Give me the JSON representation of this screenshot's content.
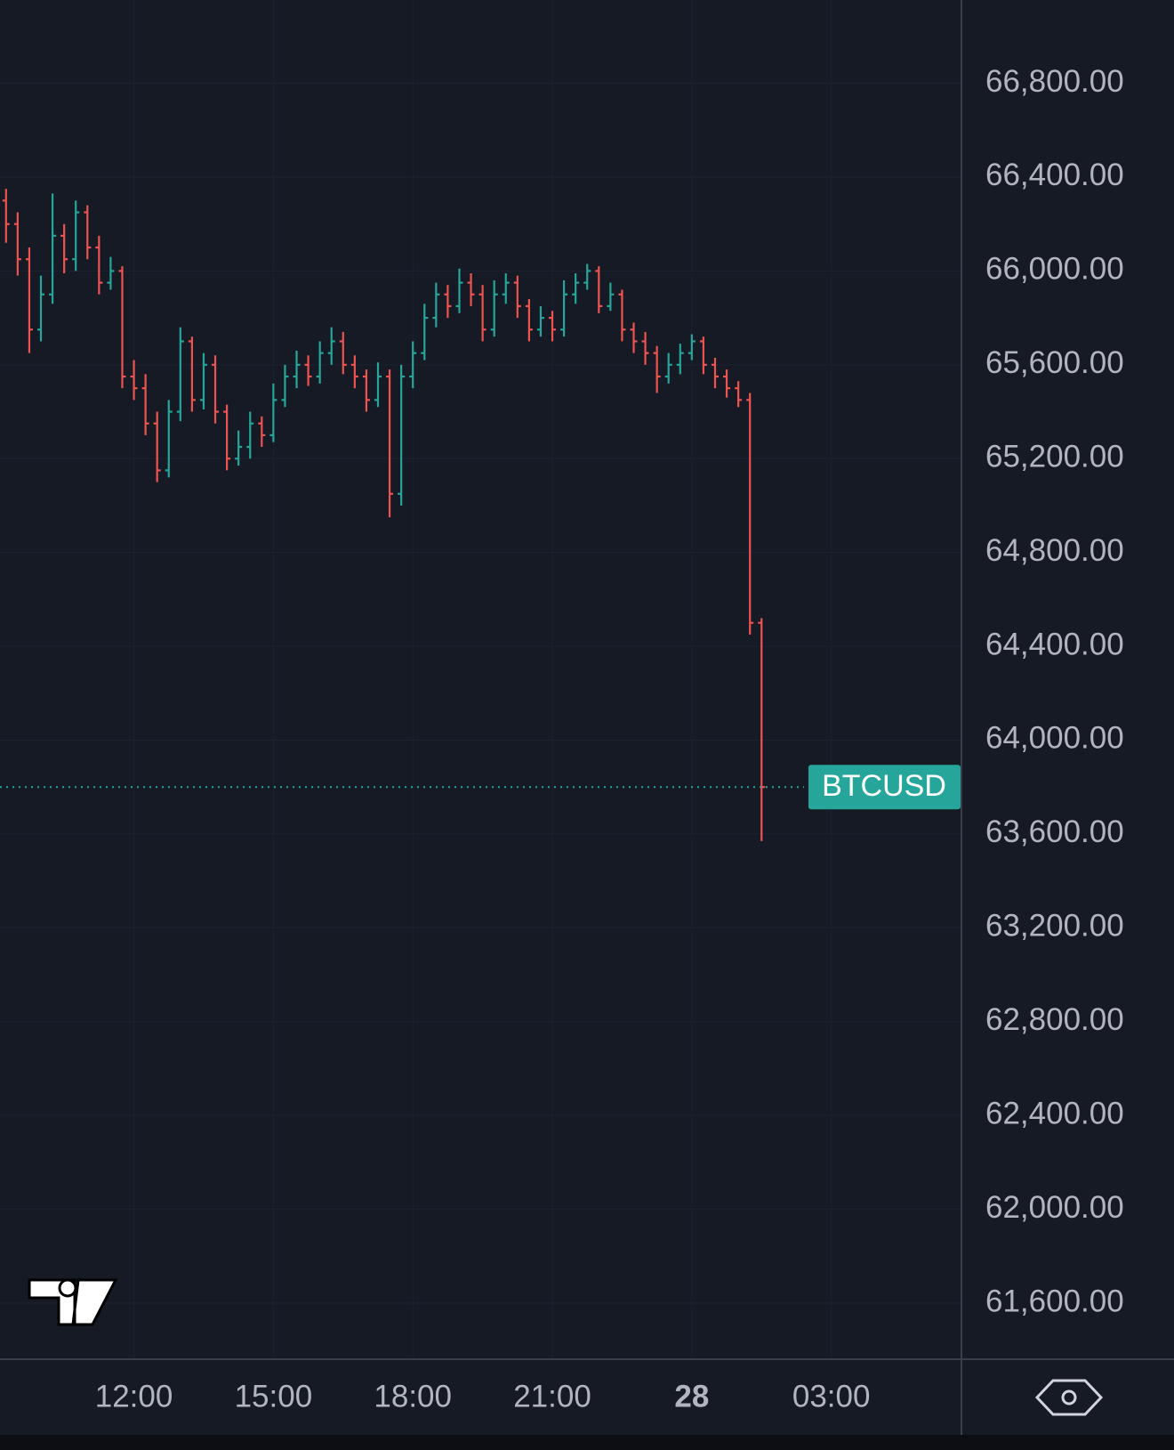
{
  "chart_data": {
    "type": "ohlc",
    "symbol": "BTCUSD",
    "up_color": "#26a69a",
    "down_color": "#ef5350",
    "grid": true,
    "x": [
      9.25,
      9.5,
      9.75,
      10,
      10.25,
      10.5,
      10.75,
      11,
      11.25,
      11.5,
      11.75,
      12,
      12.25,
      12.5,
      12.75,
      13,
      13.25,
      13.5,
      13.75,
      14,
      14.25,
      14.5,
      14.75,
      15,
      15.25,
      15.5,
      15.75,
      16,
      16.25,
      16.5,
      16.75,
      17,
      17.25,
      17.5,
      17.75,
      18,
      18.25,
      18.5,
      18.75,
      19,
      19.25,
      19.5,
      19.75,
      20,
      20.25,
      20.5,
      20.75,
      21,
      21.25,
      21.5,
      21.75,
      22,
      22.25,
      22.5,
      22.75,
      23,
      23.25,
      23.5,
      23.75,
      24,
      24.25,
      24.5,
      24.75,
      25,
      25.25,
      25.5
    ],
    "open": [
      66300,
      66200,
      66050,
      65750,
      65900,
      66150,
      66050,
      66250,
      66100,
      65950,
      66000,
      65550,
      65500,
      65350,
      65150,
      65400,
      65700,
      65450,
      65600,
      65400,
      65200,
      65250,
      65350,
      65300,
      65450,
      65550,
      65600,
      65550,
      65650,
      65700,
      65600,
      65550,
      65450,
      65550,
      65050,
      65550,
      65650,
      65800,
      65900,
      65850,
      65950,
      65900,
      65750,
      65900,
      65950,
      65850,
      65750,
      65800,
      65750,
      65900,
      65950,
      66000,
      65850,
      65900,
      65750,
      65700,
      65650,
      65550,
      65600,
      65650,
      65700,
      65600,
      65550,
      65500,
      65450,
      64500
    ],
    "high": [
      66350,
      66250,
      66100,
      65980,
      66330,
      66200,
      66300,
      66280,
      66150,
      66060,
      66020,
      65620,
      65560,
      65400,
      65450,
      65760,
      65720,
      65650,
      65640,
      65430,
      65320,
      65400,
      65380,
      65520,
      65600,
      65660,
      65640,
      65700,
      65760,
      65740,
      65640,
      65580,
      65610,
      65580,
      65600,
      65700,
      65860,
      65950,
      65940,
      66010,
      65990,
      65940,
      65960,
      65990,
      65980,
      65880,
      65850,
      65830,
      65960,
      65990,
      66030,
      66020,
      65950,
      65920,
      65780,
      65740,
      65680,
      65650,
      65690,
      65730,
      65720,
      65630,
      65580,
      65530,
      65480,
      64520
    ],
    "low": [
      66120,
      65980,
      65650,
      65700,
      65860,
      65990,
      66000,
      66050,
      65900,
      65920,
      65500,
      65450,
      65300,
      65100,
      65120,
      65360,
      65400,
      65410,
      65350,
      65150,
      65170,
      65200,
      65250,
      65270,
      65420,
      65500,
      65510,
      65520,
      65600,
      65560,
      65500,
      65400,
      65420,
      64950,
      65000,
      65500,
      65620,
      65760,
      65800,
      65820,
      65850,
      65700,
      65720,
      65860,
      65800,
      65700,
      65720,
      65700,
      65720,
      65860,
      65920,
      65820,
      65830,
      65700,
      65650,
      65600,
      65480,
      65520,
      65560,
      65620,
      65560,
      65500,
      65460,
      65420,
      64450,
      63570
    ],
    "close": [
      66200,
      66050,
      65750,
      65900,
      66150,
      66050,
      66250,
      66100,
      65950,
      66000,
      65550,
      65500,
      65350,
      65150,
      65400,
      65700,
      65450,
      65600,
      65400,
      65200,
      65250,
      65350,
      65300,
      65450,
      65550,
      65600,
      65550,
      65650,
      65700,
      65600,
      65550,
      65450,
      65550,
      65050,
      65550,
      65650,
      65800,
      65900,
      65850,
      65950,
      65900,
      65750,
      65900,
      65950,
      65850,
      65750,
      65800,
      65750,
      65900,
      65950,
      66000,
      65850,
      65900,
      65750,
      65700,
      65650,
      65550,
      65600,
      65650,
      65700,
      65600,
      65550,
      65500,
      65450,
      64500,
      63800
    ],
    "last_price": 63800,
    "xlim": [
      9.12,
      29.78
    ],
    "ylim": [
      61361,
      67155
    ],
    "xticks": [
      {
        "value": 12,
        "label": "12:00"
      },
      {
        "value": 15,
        "label": "15:00"
      },
      {
        "value": 18,
        "label": "18:00"
      },
      {
        "value": 21,
        "label": "21:00"
      },
      {
        "value": 24,
        "label": "28"
      },
      {
        "value": 27,
        "label": "03:00"
      }
    ],
    "yticks": [
      {
        "value": 61600,
        "label": "61,600.00"
      },
      {
        "value": 62000,
        "label": "62,000.00"
      },
      {
        "value": 62400,
        "label": "62,400.00"
      },
      {
        "value": 62800,
        "label": "62,800.00"
      },
      {
        "value": 63200,
        "label": "63,200.00"
      },
      {
        "value": 63600,
        "label": "63,600.00"
      },
      {
        "value": 64000,
        "label": "64,000.00"
      },
      {
        "value": 64400,
        "label": "64,400.00"
      },
      {
        "value": 64800,
        "label": "64,800.00"
      },
      {
        "value": 65200,
        "label": "65,200.00"
      },
      {
        "value": 65600,
        "label": "65,600.00"
      },
      {
        "value": 66000,
        "label": "66,000.00"
      },
      {
        "value": 66400,
        "label": "66,400.00"
      },
      {
        "value": 66800,
        "label": "66,800.00"
      }
    ]
  }
}
